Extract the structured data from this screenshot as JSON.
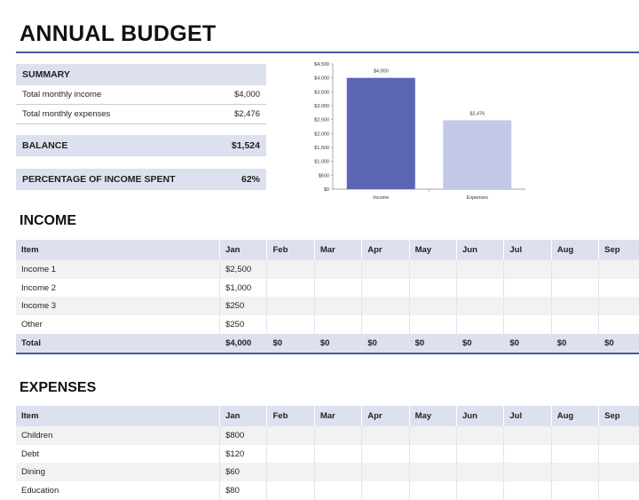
{
  "title": "ANNUAL BUDGET",
  "summary": {
    "heading": "SUMMARY",
    "rows": [
      {
        "label": "Total monthly income",
        "value": "$4,000"
      },
      {
        "label": "Total monthly expenses",
        "value": "$2,476"
      }
    ],
    "balance_label": "BALANCE",
    "balance_value": "$1,524",
    "pct_label": "PERCENTAGE OF INCOME SPENT",
    "pct_value": "62%"
  },
  "chart_data": {
    "type": "bar",
    "categories": [
      "Income",
      "Expenses"
    ],
    "values": [
      4000,
      2476
    ],
    "data_labels": [
      "$4,000",
      "$2,476"
    ],
    "yticks": [
      "$0",
      "$500",
      "$1,000",
      "$1,500",
      "$2,000",
      "$2,500",
      "$3,000",
      "$3,500",
      "$4,000",
      "$4,500"
    ],
    "ylim": [
      0,
      4500
    ],
    "colors": [
      "#5c64b4",
      "#c5c9e8"
    ],
    "grid": false
  },
  "income": {
    "title": "INCOME",
    "columns": [
      "Item",
      "Jan",
      "Feb",
      "Mar",
      "Apr",
      "May",
      "Jun",
      "Jul",
      "Aug",
      "Sep"
    ],
    "rows": [
      [
        "Income 1",
        "$2,500",
        "",
        "",
        "",
        "",
        "",
        "",
        "",
        ""
      ],
      [
        "Income 2",
        "$1,000",
        "",
        "",
        "",
        "",
        "",
        "",
        "",
        ""
      ],
      [
        "Income 3",
        "$250",
        "",
        "",
        "",
        "",
        "",
        "",
        "",
        ""
      ],
      [
        "Other",
        "$250",
        "",
        "",
        "",
        "",
        "",
        "",
        "",
        ""
      ]
    ],
    "total": [
      "Total",
      "$4,000",
      "$0",
      "$0",
      "$0",
      "$0",
      "$0",
      "$0",
      "$0",
      "$0"
    ]
  },
  "expenses": {
    "title": "EXPENSES",
    "columns": [
      "Item",
      "Jan",
      "Feb",
      "Mar",
      "Apr",
      "May",
      "Jun",
      "Jul",
      "Aug",
      "Sep"
    ],
    "rows": [
      [
        "Children",
        "$800",
        "",
        "",
        "",
        "",
        "",
        "",
        "",
        ""
      ],
      [
        "Debt",
        "$120",
        "",
        "",
        "",
        "",
        "",
        "",
        "",
        ""
      ],
      [
        "Dining",
        "$60",
        "",
        "",
        "",
        "",
        "",
        "",
        "",
        ""
      ],
      [
        "Education",
        "$80",
        "",
        "",
        "",
        "",
        "",
        "",
        "",
        ""
      ]
    ]
  },
  "colors": {
    "accent": "#4a56a6",
    "header_fill": "#dde0ee"
  }
}
